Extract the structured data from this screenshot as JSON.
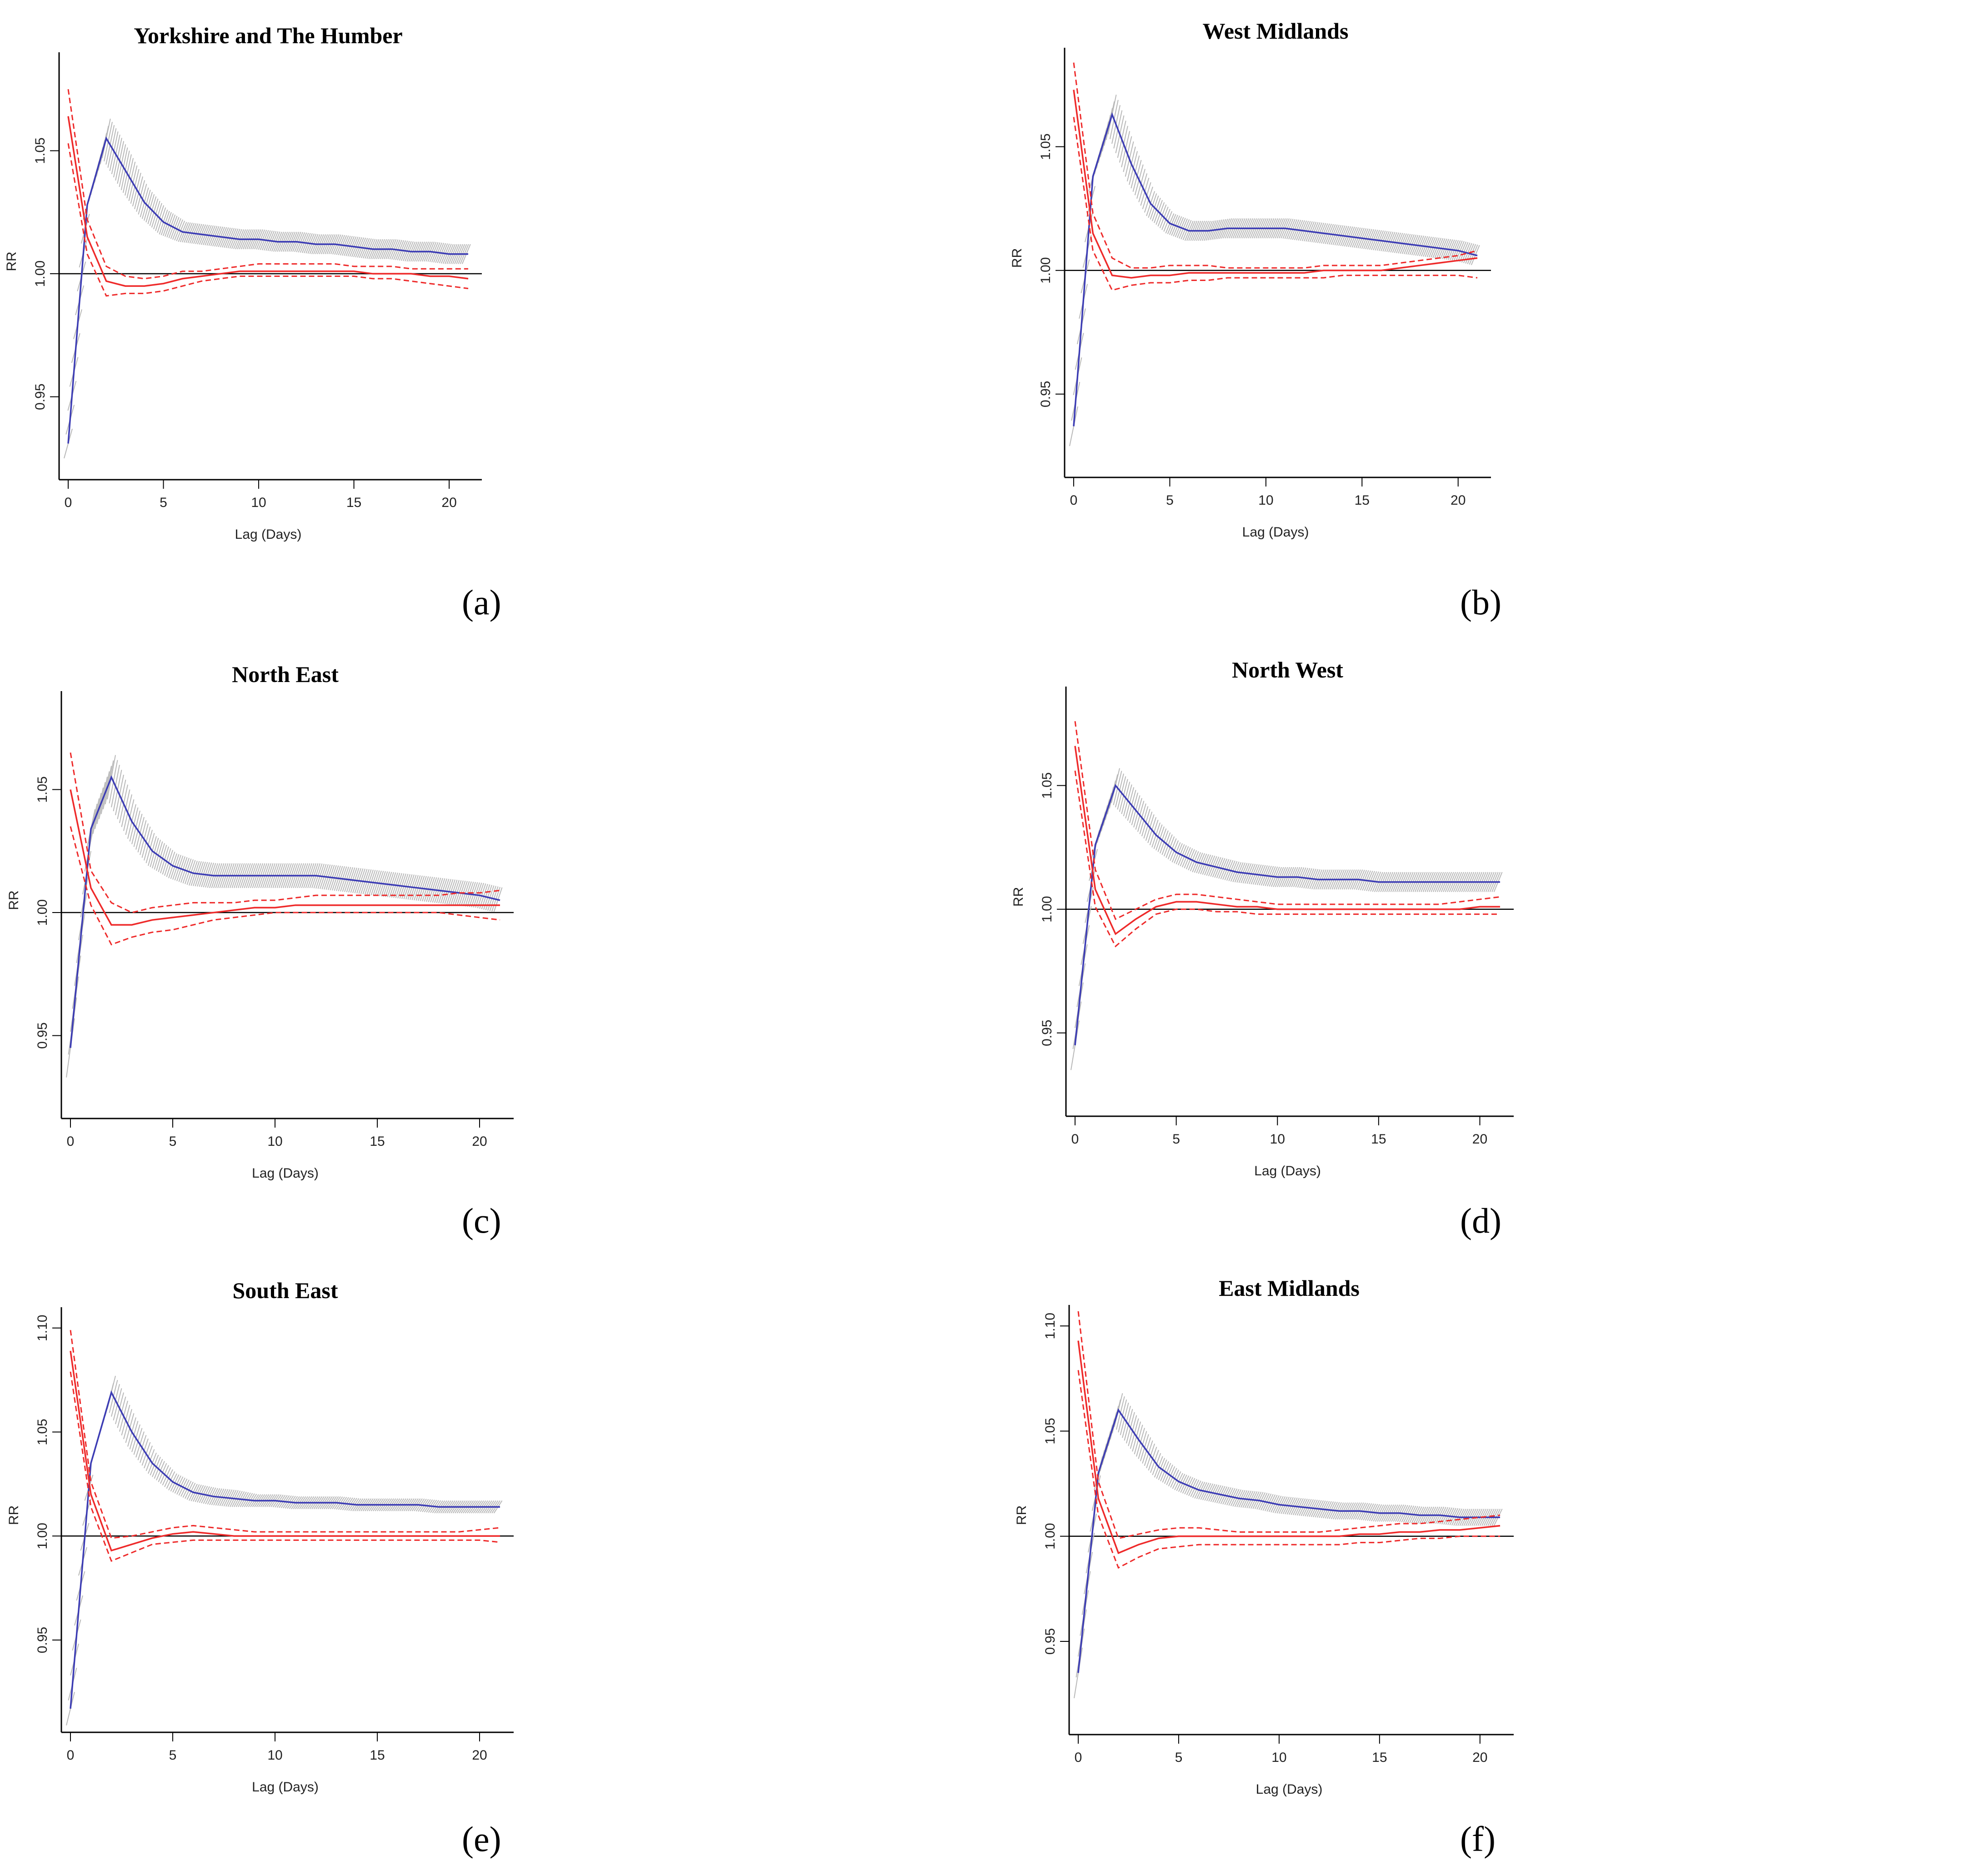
{
  "colors": {
    "blue": "#3c3cb4",
    "red": "#ee2a2a",
    "ci_band": "#b8b8b8",
    "axis": "#000000"
  },
  "chart_data": [
    {
      "type": "line",
      "title": "Yorkshire and The Humber",
      "caption": "(a)",
      "xlabel": "Lag (Days)",
      "ylabel": "RR",
      "xlim": [
        0,
        21
      ],
      "ylim": [
        0.92,
        1.09
      ],
      "xticks": [
        0,
        5,
        10,
        15,
        20
      ],
      "yticks": [
        0.95,
        1.0,
        1.05
      ],
      "x": [
        0,
        1,
        2,
        3,
        4,
        5,
        6,
        7,
        8,
        9,
        10,
        11,
        12,
        13,
        14,
        15,
        16,
        17,
        18,
        19,
        20,
        21
      ],
      "series": [
        {
          "color": "blue",
          "values": [
            0.931,
            1.028,
            1.055,
            1.042,
            1.029,
            1.021,
            1.017,
            1.016,
            1.015,
            1.014,
            1.014,
            1.013,
            1.013,
            1.012,
            1.012,
            1.011,
            1.01,
            1.01,
            1.009,
            1.009,
            1.008,
            1.008
          ],
          "band": [
            0.006,
            0.006,
            0.008,
            0.008,
            0.006,
            0.005,
            0.004,
            0.004,
            0.004,
            0.004,
            0.004,
            0.004,
            0.004,
            0.004,
            0.004,
            0.004,
            0.004,
            0.004,
            0.004,
            0.004,
            0.004,
            0.004
          ]
        },
        {
          "color": "red",
          "values": [
            1.064,
            1.015,
            0.997,
            0.995,
            0.995,
            0.996,
            0.998,
            0.999,
            1.0,
            1.001,
            1.001,
            1.001,
            1.001,
            1.001,
            1.001,
            1.001,
            1.0,
            1.0,
            1.0,
            0.999,
            0.999,
            0.998
          ],
          "lower": [
            1.053,
            1.008,
            0.991,
            0.992,
            0.992,
            0.993,
            0.995,
            0.997,
            0.998,
            0.999,
            0.999,
            0.999,
            0.999,
            0.999,
            0.999,
            0.999,
            0.998,
            0.998,
            0.997,
            0.996,
            0.995,
            0.994
          ],
          "upper": [
            1.075,
            1.022,
            1.003,
            0.999,
            0.998,
            0.999,
            1.001,
            1.001,
            1.002,
            1.003,
            1.004,
            1.004,
            1.004,
            1.004,
            1.004,
            1.003,
            1.003,
            1.003,
            1.002,
            1.002,
            1.002,
            1.002
          ]
        }
      ]
    },
    {
      "type": "line",
      "title": "West Midlands",
      "caption": "(b)",
      "xlabel": "Lag (Days)",
      "ylabel": "RR",
      "xlim": [
        0,
        21
      ],
      "ylim": [
        0.92,
        1.09
      ],
      "xticks": [
        0,
        5,
        10,
        15,
        20
      ],
      "yticks": [
        0.95,
        1.0,
        1.05
      ],
      "x": [
        0,
        1,
        2,
        3,
        4,
        5,
        6,
        7,
        8,
        9,
        10,
        11,
        12,
        13,
        14,
        15,
        16,
        17,
        18,
        19,
        20,
        21
      ],
      "series": [
        {
          "color": "blue",
          "values": [
            0.937,
            1.038,
            1.063,
            1.043,
            1.027,
            1.019,
            1.016,
            1.016,
            1.017,
            1.017,
            1.017,
            1.017,
            1.016,
            1.015,
            1.014,
            1.013,
            1.012,
            1.011,
            1.01,
            1.009,
            1.008,
            1.006
          ],
          "band": [
            0.008,
            0.006,
            0.008,
            0.007,
            0.005,
            0.004,
            0.004,
            0.004,
            0.004,
            0.004,
            0.004,
            0.004,
            0.004,
            0.004,
            0.004,
            0.004,
            0.004,
            0.004,
            0.004,
            0.004,
            0.004,
            0.004
          ]
        },
        {
          "color": "red",
          "values": [
            1.073,
            1.015,
            0.998,
            0.997,
            0.998,
            0.998,
            0.999,
            0.999,
            0.999,
            0.999,
            0.999,
            0.999,
            0.999,
            1.0,
            1.0,
            1.0,
            1.0,
            1.001,
            1.002,
            1.003,
            1.004,
            1.005
          ],
          "lower": [
            1.062,
            1.008,
            0.992,
            0.994,
            0.995,
            0.995,
            0.996,
            0.996,
            0.997,
            0.997,
            0.997,
            0.997,
            0.997,
            0.997,
            0.998,
            0.998,
            0.998,
            0.998,
            0.998,
            0.998,
            0.998,
            0.997
          ],
          "upper": [
            1.084,
            1.023,
            1.005,
            1.001,
            1.001,
            1.002,
            1.002,
            1.002,
            1.001,
            1.001,
            1.001,
            1.001,
            1.001,
            1.002,
            1.002,
            1.002,
            1.002,
            1.003,
            1.004,
            1.005,
            1.006,
            1.008
          ]
        }
      ]
    },
    {
      "type": "line",
      "title": "North East",
      "caption": "(c)",
      "xlabel": "Lag (Days)",
      "ylabel": "RR",
      "xlim": [
        0,
        21
      ],
      "ylim": [
        0.92,
        1.09
      ],
      "xticks": [
        0,
        5,
        10,
        15,
        20
      ],
      "yticks": [
        0.95,
        1.0,
        1.05
      ],
      "x": [
        0,
        1,
        2,
        3,
        4,
        5,
        6,
        7,
        8,
        9,
        10,
        11,
        12,
        13,
        14,
        15,
        16,
        17,
        18,
        19,
        20,
        21
      ],
      "series": [
        {
          "color": "blue",
          "values": [
            0.945,
            1.034,
            1.055,
            1.037,
            1.025,
            1.019,
            1.016,
            1.015,
            1.015,
            1.015,
            1.015,
            1.015,
            1.015,
            1.014,
            1.013,
            1.012,
            1.011,
            1.01,
            1.009,
            1.008,
            1.007,
            1.005
          ],
          "band": [
            0.012,
            0.008,
            0.009,
            0.007,
            0.006,
            0.005,
            0.005,
            0.005,
            0.005,
            0.005,
            0.005,
            0.005,
            0.005,
            0.005,
            0.005,
            0.005,
            0.005,
            0.005,
            0.005,
            0.005,
            0.005,
            0.005
          ]
        },
        {
          "color": "red",
          "values": [
            1.05,
            1.01,
            0.995,
            0.995,
            0.997,
            0.998,
            0.999,
            1.0,
            1.001,
            1.002,
            1.002,
            1.003,
            1.003,
            1.003,
            1.003,
            1.003,
            1.003,
            1.003,
            1.003,
            1.003,
            1.003,
            1.003
          ],
          "lower": [
            1.035,
            1.003,
            0.987,
            0.99,
            0.992,
            0.993,
            0.995,
            0.997,
            0.998,
            0.999,
            1.0,
            1.0,
            1.0,
            1.0,
            1.0,
            1.0,
            1.0,
            1.0,
            1.0,
            0.999,
            0.998,
            0.997
          ],
          "upper": [
            1.065,
            1.017,
            1.004,
            1.0,
            1.002,
            1.003,
            1.004,
            1.004,
            1.004,
            1.005,
            1.005,
            1.006,
            1.007,
            1.007,
            1.007,
            1.007,
            1.007,
            1.007,
            1.007,
            1.008,
            1.008,
            1.009
          ]
        }
      ]
    },
    {
      "type": "line",
      "title": "North West",
      "caption": "(d)",
      "xlabel": "Lag (Days)",
      "ylabel": "RR",
      "xlim": [
        0,
        21
      ],
      "ylim": [
        0.92,
        1.09
      ],
      "xticks": [
        0,
        5,
        10,
        15,
        20
      ],
      "yticks": [
        0.95,
        1.0,
        1.05
      ],
      "x": [
        0,
        1,
        2,
        3,
        4,
        5,
        6,
        7,
        8,
        9,
        10,
        11,
        12,
        13,
        14,
        15,
        16,
        17,
        18,
        19,
        20,
        21
      ],
      "series": [
        {
          "color": "blue",
          "values": [
            0.945,
            1.026,
            1.05,
            1.04,
            1.03,
            1.023,
            1.019,
            1.017,
            1.015,
            1.014,
            1.013,
            1.013,
            1.012,
            1.012,
            1.012,
            1.011,
            1.011,
            1.011,
            1.011,
            1.011,
            1.011,
            1.011
          ],
          "band": [
            0.01,
            0.006,
            0.007,
            0.006,
            0.005,
            0.004,
            0.004,
            0.004,
            0.004,
            0.004,
            0.004,
            0.004,
            0.004,
            0.004,
            0.004,
            0.004,
            0.004,
            0.004,
            0.004,
            0.004,
            0.004,
            0.004
          ]
        },
        {
          "color": "red",
          "values": [
            1.066,
            1.008,
            0.99,
            0.996,
            1.001,
            1.003,
            1.003,
            1.002,
            1.001,
            1.001,
            1.0,
            1.0,
            1.0,
            1.0,
            1.0,
            1.0,
            1.0,
            1.0,
            1.0,
            1.0,
            1.001,
            1.001
          ],
          "lower": [
            1.056,
            1.001,
            0.985,
            0.992,
            0.998,
            1.0,
            1.0,
            0.999,
            0.999,
            0.998,
            0.998,
            0.998,
            0.998,
            0.998,
            0.998,
            0.998,
            0.998,
            0.998,
            0.998,
            0.998,
            0.998,
            0.998
          ],
          "upper": [
            1.076,
            1.016,
            0.996,
            1.0,
            1.004,
            1.006,
            1.006,
            1.005,
            1.004,
            1.003,
            1.002,
            1.002,
            1.002,
            1.002,
            1.002,
            1.002,
            1.002,
            1.002,
            1.002,
            1.003,
            1.004,
            1.005
          ]
        }
      ]
    },
    {
      "type": "line",
      "title": "South East",
      "caption": "(e)",
      "xlabel": "Lag (Days)",
      "ylabel": "RR",
      "xlim": [
        0,
        21
      ],
      "ylim": [
        0.91,
        1.11
      ],
      "xticks": [
        0,
        5,
        10,
        15,
        20
      ],
      "yticks": [
        0.95,
        1.0,
        1.05,
        1.1
      ],
      "x": [
        0,
        1,
        2,
        3,
        4,
        5,
        6,
        7,
        8,
        9,
        10,
        11,
        12,
        13,
        14,
        15,
        16,
        17,
        18,
        19,
        20,
        21
      ],
      "series": [
        {
          "color": "blue",
          "values": [
            0.917,
            1.035,
            1.069,
            1.05,
            1.035,
            1.026,
            1.021,
            1.019,
            1.018,
            1.017,
            1.017,
            1.016,
            1.016,
            1.016,
            1.015,
            1.015,
            1.015,
            1.015,
            1.014,
            1.014,
            1.014,
            1.014
          ],
          "band": [
            0.008,
            0.006,
            0.008,
            0.007,
            0.005,
            0.004,
            0.004,
            0.004,
            0.004,
            0.003,
            0.003,
            0.003,
            0.003,
            0.003,
            0.003,
            0.003,
            0.003,
            0.003,
            0.003,
            0.003,
            0.003,
            0.003
          ]
        },
        {
          "color": "red",
          "values": [
            1.089,
            1.02,
            0.993,
            0.996,
            0.999,
            1.001,
            1.002,
            1.001,
            1.0,
            1.0,
            1.0,
            1.0,
            1.0,
            1.0,
            1.0,
            1.0,
            1.0,
            1.0,
            1.0,
            1.0,
            1.0,
            1.0
          ],
          "lower": [
            1.079,
            1.014,
            0.988,
            0.992,
            0.996,
            0.997,
            0.998,
            0.998,
            0.998,
            0.998,
            0.998,
            0.998,
            0.998,
            0.998,
            0.998,
            0.998,
            0.998,
            0.998,
            0.998,
            0.998,
            0.998,
            0.997
          ],
          "upper": [
            1.099,
            1.026,
            0.999,
            1.0,
            1.002,
            1.004,
            1.005,
            1.004,
            1.003,
            1.002,
            1.002,
            1.002,
            1.002,
            1.002,
            1.002,
            1.002,
            1.002,
            1.002,
            1.002,
            1.002,
            1.003,
            1.004
          ]
        }
      ]
    },
    {
      "type": "line",
      "title": "East Midlands",
      "caption": "(f)",
      "xlabel": "Lag (Days)",
      "ylabel": "RR",
      "xlim": [
        0,
        21
      ],
      "ylim": [
        0.91,
        1.11
      ],
      "xticks": [
        0,
        5,
        10,
        15,
        20
      ],
      "yticks": [
        0.95,
        1.0,
        1.05,
        1.1
      ],
      "x": [
        0,
        1,
        2,
        3,
        4,
        5,
        6,
        7,
        8,
        9,
        10,
        11,
        12,
        13,
        14,
        15,
        16,
        17,
        18,
        19,
        20,
        21
      ],
      "series": [
        {
          "color": "blue",
          "values": [
            0.935,
            1.03,
            1.06,
            1.046,
            1.033,
            1.026,
            1.022,
            1.02,
            1.018,
            1.017,
            1.015,
            1.014,
            1.013,
            1.012,
            1.012,
            1.011,
            1.011,
            1.01,
            1.01,
            1.009,
            1.009,
            1.009
          ],
          "band": [
            0.012,
            0.008,
            0.008,
            0.007,
            0.005,
            0.004,
            0.004,
            0.004,
            0.004,
            0.004,
            0.004,
            0.004,
            0.004,
            0.004,
            0.004,
            0.004,
            0.004,
            0.004,
            0.004,
            0.004,
            0.004,
            0.004
          ]
        },
        {
          "color": "red",
          "values": [
            1.093,
            1.018,
            0.992,
            0.996,
            0.999,
            1.0,
            1.0,
            1.0,
            1.0,
            1.0,
            1.0,
            1.0,
            1.0,
            1.0,
            1.001,
            1.001,
            1.002,
            1.002,
            1.003,
            1.003,
            1.004,
            1.005
          ],
          "lower": [
            1.079,
            1.01,
            0.985,
            0.99,
            0.994,
            0.995,
            0.996,
            0.996,
            0.996,
            0.996,
            0.996,
            0.996,
            0.996,
            0.996,
            0.997,
            0.997,
            0.998,
            0.999,
            0.999,
            1.0,
            1.0,
            1.0
          ],
          "upper": [
            1.107,
            1.026,
            0.999,
            1.001,
            1.003,
            1.004,
            1.004,
            1.003,
            1.002,
            1.002,
            1.002,
            1.002,
            1.002,
            1.003,
            1.004,
            1.005,
            1.006,
            1.006,
            1.007,
            1.008,
            1.009,
            1.01
          ]
        }
      ]
    }
  ]
}
